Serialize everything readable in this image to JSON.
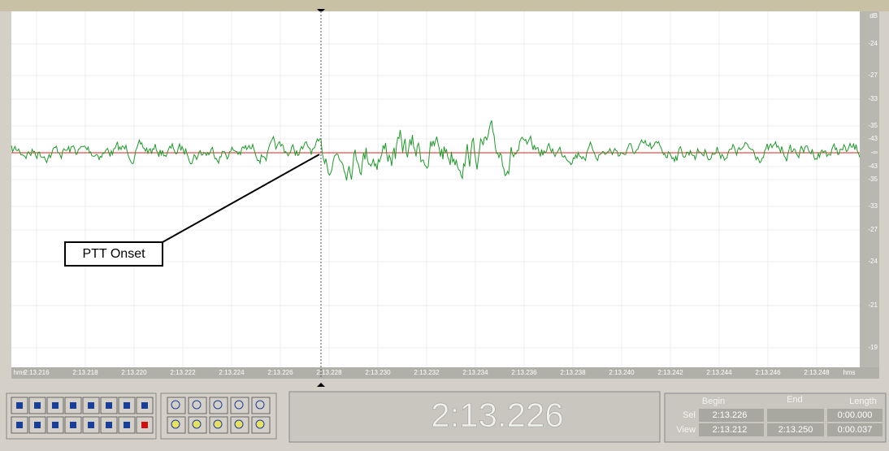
{
  "waveform_view": {
    "amplitude_ruler": [
      "dB",
      "-24",
      "-27",
      "-33",
      "-35",
      "-43",
      "-∞",
      "-43",
      "-35",
      "-33",
      "-27",
      "-24",
      "-21",
      "-19"
    ],
    "time_ruler": [
      "hms",
      "2:13.216",
      "2:13.218",
      "2:13.220",
      "2:13.222",
      "2:13.224",
      "2:13.226",
      "2:13.228",
      "2:13.230",
      "2:13.232",
      "2:13.234",
      "2:13.236",
      "2:13.238",
      "2:13.240",
      "2:13.242",
      "2:13.244",
      "2:13.246",
      "2:13.248",
      "hms"
    ],
    "annotation": "PTT Onset"
  },
  "time_display": "2:13.226",
  "selection_panel": {
    "headers": [
      "Begin",
      "End",
      "Length"
    ],
    "sel": {
      "label": "Sel",
      "begin": "2:13.226",
      "length": "0:00.000"
    },
    "view": {
      "label": "View",
      "begin": "2:13.212",
      "end": "2:13.250",
      "length": "0:00.037"
    }
  }
}
